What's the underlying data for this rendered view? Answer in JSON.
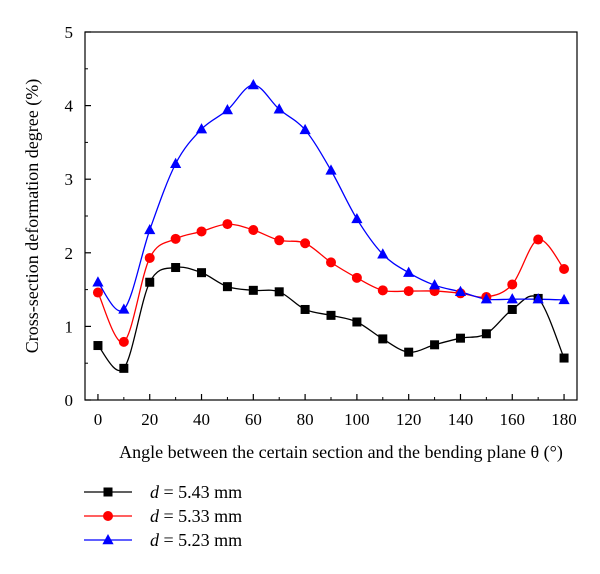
{
  "chart_data": {
    "type": "line",
    "title": "",
    "xlabel": "Angle between the certain section and the bending plane θ (°)",
    "ylabel": "Cross-section deformation degree (%)",
    "xlim": [
      -5,
      185
    ],
    "ylim": [
      0,
      5
    ],
    "xticks": [
      0,
      20,
      40,
      60,
      80,
      100,
      120,
      140,
      160,
      180
    ],
    "yticks": [
      0,
      1,
      2,
      3,
      4,
      5
    ],
    "grid": false,
    "legend_position": "bottom-left",
    "x": [
      0,
      10,
      20,
      30,
      40,
      50,
      60,
      70,
      80,
      90,
      100,
      110,
      120,
      130,
      140,
      150,
      160,
      170,
      180
    ],
    "series": [
      {
        "name": "d = 5.43 mm",
        "legend_var": "d",
        "legend_value": " = 5.43 mm",
        "color": "#000000",
        "marker": "square",
        "values": [
          0.74,
          0.43,
          1.6,
          1.8,
          1.73,
          1.54,
          1.49,
          1.47,
          1.23,
          1.15,
          1.06,
          0.83,
          0.65,
          0.75,
          0.84,
          0.9,
          1.23,
          1.38,
          0.57
        ]
      },
      {
        "name": "d = 5.33 mm",
        "legend_var": "d",
        "legend_value": " = 5.33 mm",
        "color": "#ff0000",
        "marker": "circle",
        "values": [
          1.46,
          0.79,
          1.93,
          2.19,
          2.29,
          2.39,
          2.31,
          2.17,
          2.13,
          1.87,
          1.66,
          1.49,
          1.48,
          1.48,
          1.45,
          1.4,
          1.57,
          2.18,
          1.78
        ]
      },
      {
        "name": "d = 5.23 mm",
        "legend_var": "d",
        "legend_value": " = 5.23 mm",
        "color": "#0000ff",
        "marker": "triangle",
        "values": [
          1.6,
          1.23,
          2.31,
          3.21,
          3.68,
          3.94,
          4.28,
          3.95,
          3.67,
          3.12,
          2.46,
          1.98,
          1.73,
          1.56,
          1.47,
          1.37,
          1.37,
          1.37,
          1.36
        ]
      }
    ]
  }
}
